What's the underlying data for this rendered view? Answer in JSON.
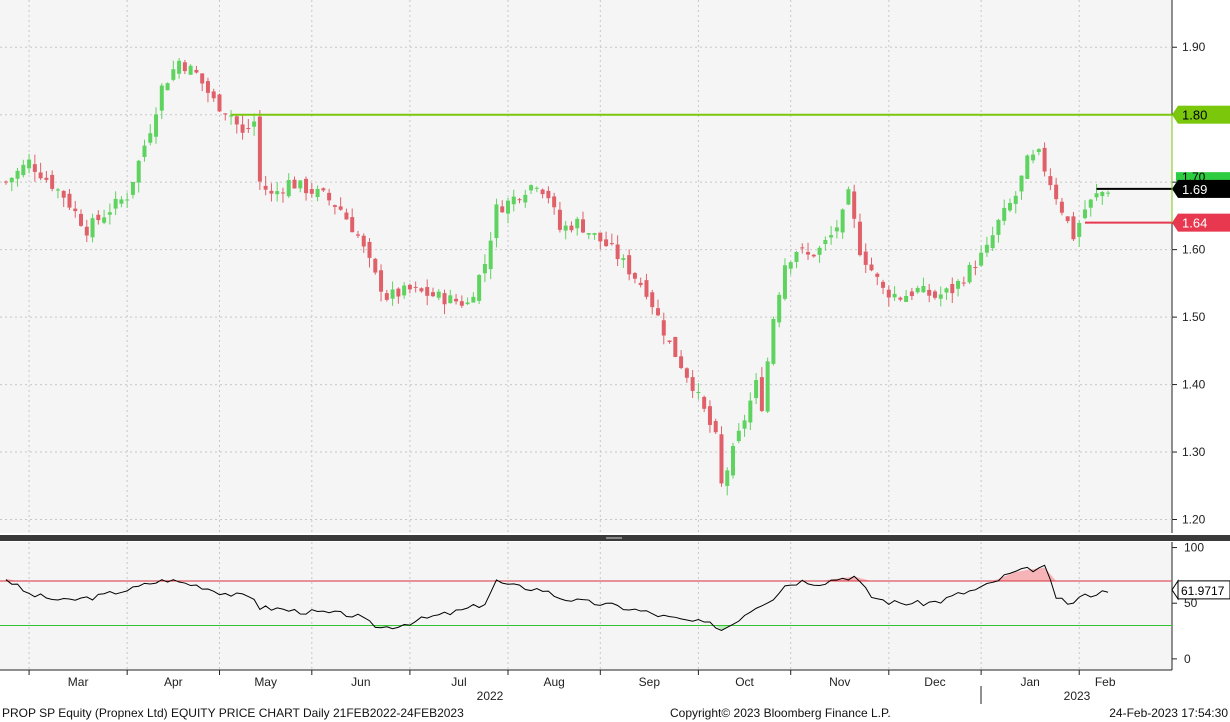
{
  "chart_data": [
    {
      "type": "candlestick",
      "panel": "price",
      "ylim": [
        1.18,
        1.97
      ],
      "y_ticks": [
        "1.20",
        "1.30",
        "1.40",
        "1.50",
        "1.60",
        "1.70",
        "1.80",
        "1.90"
      ],
      "x_month_labels": [
        "Mar",
        "Apr",
        "May",
        "Jun",
        "Jul",
        "Aug",
        "Sep",
        "Oct",
        "Nov",
        "Dec",
        "Jan",
        "Feb"
      ],
      "year_labels": [
        "2022",
        "2023"
      ],
      "grid": true,
      "colors": {
        "up": "#5fd35f",
        "down": "#e0606a",
        "resistance": "#7ac70c",
        "support": "#e8384f",
        "last": "#000000"
      },
      "levels": [
        {
          "name": "resistance",
          "value": 1.8,
          "label": "1.80"
        },
        {
          "name": "last",
          "value": 1.69,
          "label": "1.69"
        },
        {
          "name": "support",
          "value": 1.64,
          "label": "1.64"
        }
      ],
      "partial_tag": "1.70",
      "close_path": [
        [
          0,
          1.7
        ],
        [
          4,
          1.73
        ],
        [
          10,
          1.68
        ],
        [
          14,
          1.63
        ],
        [
          18,
          1.66
        ],
        [
          21,
          1.68
        ],
        [
          25,
          1.78
        ],
        [
          27,
          1.84
        ],
        [
          30,
          1.88
        ],
        [
          33,
          1.86
        ],
        [
          36,
          1.82
        ],
        [
          39,
          1.8
        ],
        [
          41,
          1.77
        ],
        [
          43,
          1.79
        ],
        [
          44,
          1.7
        ],
        [
          46,
          1.68
        ],
        [
          49,
          1.7
        ],
        [
          52,
          1.69
        ],
        [
          55,
          1.68
        ],
        [
          58,
          1.66
        ],
        [
          61,
          1.62
        ],
        [
          64,
          1.56
        ],
        [
          66,
          1.53
        ],
        [
          70,
          1.54
        ],
        [
          75,
          1.53
        ],
        [
          80,
          1.52
        ],
        [
          83,
          1.58
        ],
        [
          85,
          1.66
        ],
        [
          87,
          1.67
        ],
        [
          90,
          1.69
        ],
        [
          92,
          1.7
        ],
        [
          94,
          1.68
        ],
        [
          96,
          1.63
        ],
        [
          99,
          1.64
        ],
        [
          102,
          1.62
        ],
        [
          105,
          1.6
        ],
        [
          108,
          1.57
        ],
        [
          111,
          1.54
        ],
        [
          113,
          1.5
        ],
        [
          115,
          1.46
        ],
        [
          117,
          1.43
        ],
        [
          119,
          1.4
        ],
        [
          121,
          1.36
        ],
        [
          123,
          1.32
        ],
        [
          124,
          1.25
        ],
        [
          126,
          1.3
        ],
        [
          128,
          1.35
        ],
        [
          130,
          1.4
        ],
        [
          131,
          1.37
        ],
        [
          133,
          1.5
        ],
        [
          135,
          1.58
        ],
        [
          137,
          1.6
        ],
        [
          139,
          1.59
        ],
        [
          141,
          1.6
        ],
        [
          143,
          1.62
        ],
        [
          145,
          1.65
        ],
        [
          146,
          1.68
        ],
        [
          148,
          1.6
        ],
        [
          150,
          1.57
        ],
        [
          152,
          1.54
        ],
        [
          155,
          1.53
        ],
        [
          158,
          1.54
        ],
        [
          161,
          1.53
        ],
        [
          164,
          1.54
        ],
        [
          167,
          1.57
        ],
        [
          170,
          1.6
        ],
        [
          172,
          1.64
        ],
        [
          175,
          1.68
        ],
        [
          177,
          1.73
        ],
        [
          179,
          1.74
        ],
        [
          181,
          1.7
        ],
        [
          183,
          1.66
        ],
        [
          185,
          1.62
        ],
        [
          187,
          1.66
        ],
        [
          189,
          1.68
        ],
        [
          191,
          1.69
        ]
      ]
    },
    {
      "type": "line",
      "panel": "indicator",
      "ylim": [
        -10,
        105
      ],
      "y_ticks": [
        "100",
        "50",
        "0"
      ],
      "upper_band": 70,
      "lower_band": 30,
      "last_value_label": "61.9717",
      "colors": {
        "line": "#000000",
        "upper": "#d9303c",
        "lower": "#33c233",
        "overbought_fill": "#f7b4b8",
        "oversold_fill": "#b7eeb7"
      },
      "x": [
        0,
        2,
        4,
        7,
        10,
        13,
        16,
        19,
        22,
        25,
        28,
        31,
        34,
        37,
        40,
        43,
        44,
        47,
        50,
        53,
        56,
        59,
        61,
        63,
        65,
        68,
        71,
        74,
        77,
        80,
        83,
        85,
        87,
        90,
        93,
        96,
        99,
        102,
        105,
        108,
        111,
        114,
        117,
        120,
        123,
        124,
        126,
        128,
        130,
        133,
        135,
        138,
        141,
        144,
        147,
        150,
        153,
        156,
        159,
        162,
        165,
        168,
        171,
        173,
        175,
        177,
        180,
        182,
        184,
        186,
        188,
        190,
        191
      ],
      "values": [
        72,
        65,
        58,
        55,
        52,
        54,
        56,
        60,
        63,
        68,
        71,
        68,
        65,
        60,
        57,
        55,
        46,
        45,
        43,
        42,
        41,
        40,
        38,
        32,
        28,
        30,
        34,
        38,
        41,
        45,
        50,
        70,
        66,
        64,
        62,
        55,
        52,
        50,
        48,
        45,
        42,
        38,
        35,
        33,
        30,
        26,
        32,
        40,
        47,
        55,
        66,
        70,
        68,
        72,
        74,
        56,
        51,
        50,
        50,
        52,
        58,
        62,
        68,
        74,
        78,
        80,
        82,
        56,
        48,
        55,
        58,
        60,
        62
      ]
    }
  ],
  "footer": {
    "left": "PROP SP Equity (Propnex Ltd) EQUITY PRICE CHART  Daily 21FEB2022-24FEB2023",
    "center": "Copyright© 2023 Bloomberg Finance L.P.",
    "right": "24-Feb-2023 17:54:30"
  }
}
